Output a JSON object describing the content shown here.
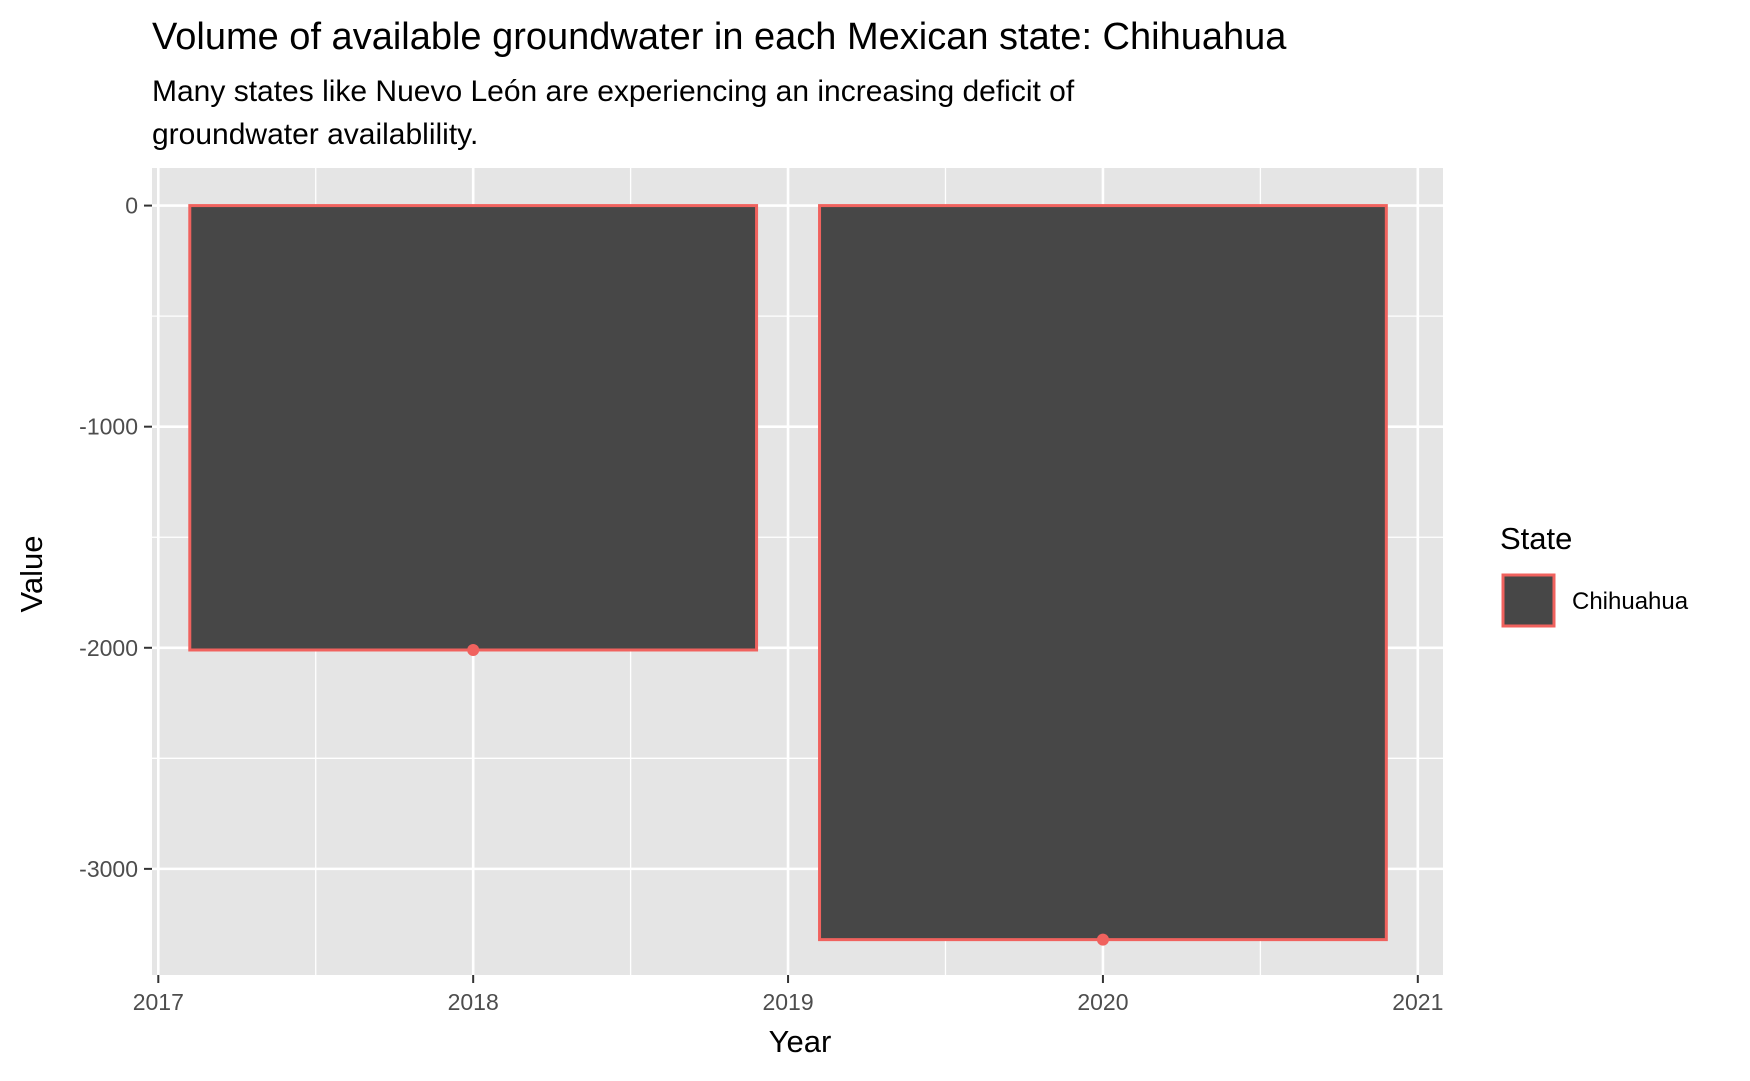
{
  "chart_data": {
    "type": "bar",
    "title": "Volume of available groundwater in each Mexican state: Chihuahua",
    "subtitle_lines": [
      "Many states like Nuevo León are experiencing an increasing deficit of",
      "groundwater availablility."
    ],
    "xlabel": "Year",
    "ylabel": "Value",
    "x_ticks": [
      "2017",
      "2018",
      "2019",
      "2020",
      "2021"
    ],
    "y_ticks": [
      "0",
      "-1000",
      "-2000",
      "-3000"
    ],
    "xlim": [
      2016.98,
      2021.08
    ],
    "ylim": [
      -3480,
      170
    ],
    "grid": true,
    "series": [
      {
        "name": "Chihuahua",
        "x": [
          2018,
          2020
        ],
        "values": [
          -2010,
          -3320
        ]
      }
    ],
    "legend": {
      "title": "State",
      "position": "right",
      "entries": [
        "Chihuahua"
      ]
    },
    "colors": {
      "bar_fill": "#474747",
      "bar_outline": "#f0625e",
      "panel_bg": "#e5e5e5",
      "grid": "#ffffff"
    }
  }
}
